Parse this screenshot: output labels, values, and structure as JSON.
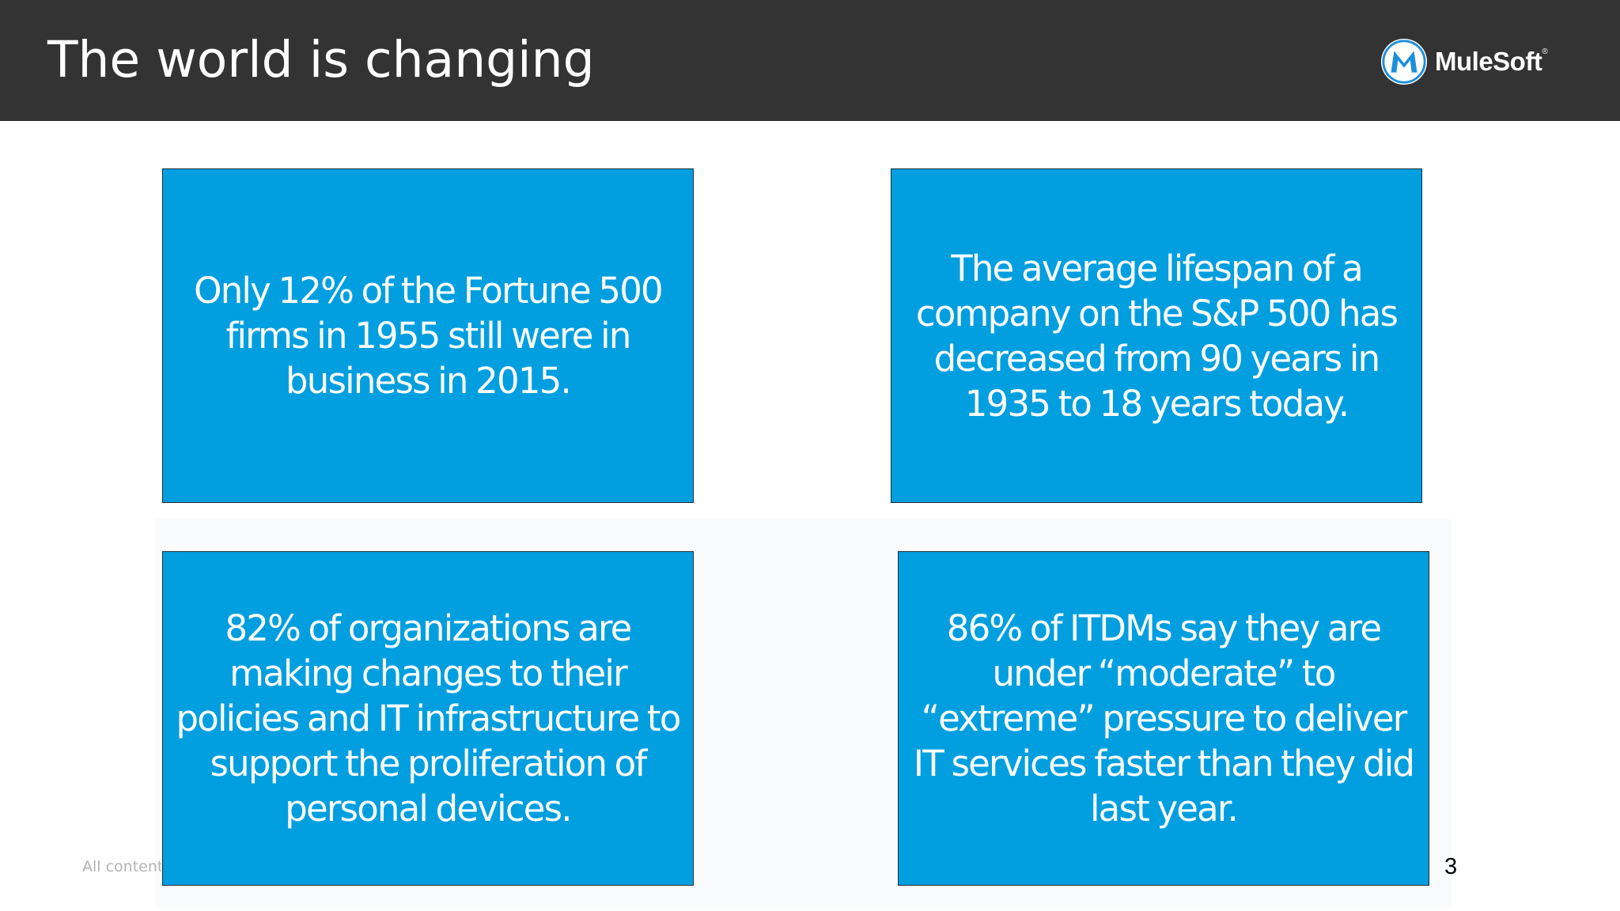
{
  "slide": {
    "title": "The world is changing",
    "page_number": "3",
    "footer_text": "All content"
  },
  "logo": {
    "name": "MuleSoft",
    "trademark": "®",
    "icon": "mulesoft-m-icon",
    "colors": {
      "ring": "#1d8fd9",
      "letter": "#1d8fd9",
      "disc": "#ffffff"
    }
  },
  "cards": [
    {
      "text": "Only 12% of the Fortune 500 firms in 1955 still were in business in 2015."
    },
    {
      "text": "The average lifespan of a company on the S&P 500 has decreased from 90 years in 1935 to 18 years today."
    },
    {
      "text": "82% of organizations are making changes to their policies and IT infrastructure to support the proliferation of personal devices."
    },
    {
      "text": "86% of ITDMs say they are under “moderate” to “extreme” pressure to deliver IT services faster than they did last year."
    }
  ],
  "colors": {
    "header": "#333333",
    "card": "#019fdf",
    "card_text": "#ffffff"
  }
}
